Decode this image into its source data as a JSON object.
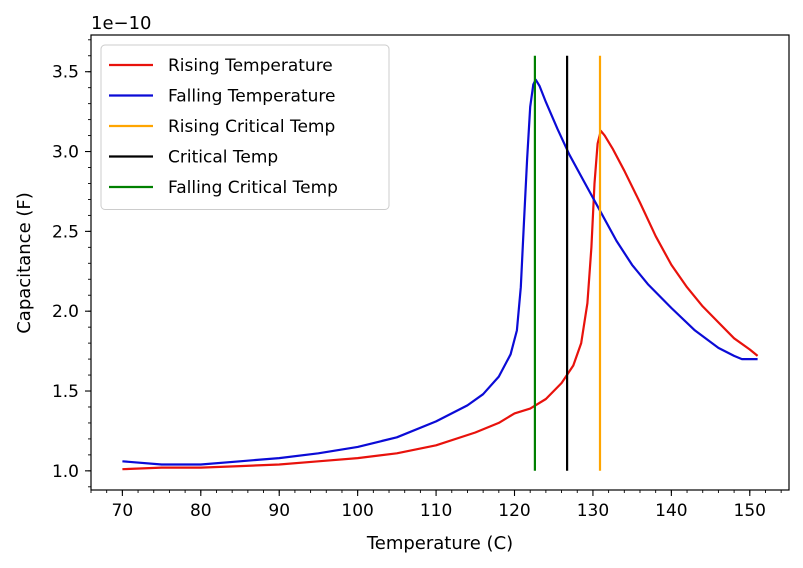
{
  "chart_data": {
    "type": "line",
    "xlabel": "Temperature (C)",
    "ylabel": "Capacitance (F)",
    "offset_label": "1e−10",
    "y_scale": 1e-10,
    "xlim": [
      66,
      155
    ],
    "ylim": [
      8.8e-11,
      3.73e-10
    ],
    "x_ticks": [
      70,
      80,
      90,
      100,
      110,
      120,
      130,
      140,
      150
    ],
    "x_tick_labels": [
      "70",
      "80",
      "90",
      "100",
      "110",
      "120",
      "130",
      "140",
      "150"
    ],
    "y_ticks": [
      1e-10,
      1.5e-10,
      2e-10,
      2.5e-10,
      3e-10,
      3.5e-10
    ],
    "y_tick_labels": [
      "1.0",
      "1.5",
      "2.0",
      "2.5",
      "3.0",
      "3.5"
    ],
    "grid": false,
    "legend_position": "top-left",
    "series": [
      {
        "name": "Rising Temperature",
        "kind": "curve",
        "color": "#e8120c",
        "x": [
          70,
          75,
          80,
          85,
          90,
          95,
          100,
          105,
          110,
          115,
          118,
          120,
          122,
          124,
          126,
          127.5,
          128.5,
          129.3,
          129.8,
          130.2,
          130.6,
          131,
          131.5,
          132.5,
          134,
          136,
          138,
          140,
          142,
          144,
          146,
          148,
          150,
          151
        ],
        "y": [
          1.01e-10,
          1.02e-10,
          1.02e-10,
          1.03e-10,
          1.04e-10,
          1.06e-10,
          1.08e-10,
          1.11e-10,
          1.16e-10,
          1.24e-10,
          1.3e-10,
          1.36e-10,
          1.39e-10,
          1.45e-10,
          1.55e-10,
          1.66e-10,
          1.8e-10,
          2.05e-10,
          2.4e-10,
          2.8e-10,
          3.05e-10,
          3.13e-10,
          3.1e-10,
          3.02e-10,
          2.88e-10,
          2.68e-10,
          2.47e-10,
          2.29e-10,
          2.15e-10,
          2.03e-10,
          1.93e-10,
          1.83e-10,
          1.76e-10,
          1.72e-10
        ]
      },
      {
        "name": "Falling Temperature",
        "kind": "curve",
        "color": "#0b0bd6",
        "x": [
          70,
          75,
          80,
          85,
          90,
          95,
          100,
          105,
          110,
          114,
          116,
          118,
          119.5,
          120.3,
          120.8,
          121.2,
          121.6,
          122,
          122.4,
          122.7,
          123.2,
          124,
          125.5,
          127,
          129,
          131,
          133,
          135,
          137,
          140,
          143,
          146,
          148,
          149,
          150,
          151
        ],
        "y": [
          1.06e-10,
          1.04e-10,
          1.04e-10,
          1.06e-10,
          1.08e-10,
          1.11e-10,
          1.15e-10,
          1.21e-10,
          1.31e-10,
          1.41e-10,
          1.48e-10,
          1.59e-10,
          1.73e-10,
          1.88e-10,
          2.15e-10,
          2.55e-10,
          2.95e-10,
          3.28e-10,
          3.42e-10,
          3.45e-10,
          3.41e-10,
          3.31e-10,
          3.14e-10,
          2.98e-10,
          2.8e-10,
          2.62e-10,
          2.44e-10,
          2.29e-10,
          2.17e-10,
          2.02e-10,
          1.88e-10,
          1.77e-10,
          1.72e-10,
          1.7e-10,
          1.7e-10,
          1.7e-10
        ]
      },
      {
        "name": "Rising Critical Temp",
        "kind": "vline",
        "color": "#ffa500",
        "x": [
          130.9,
          130.9
        ],
        "y": [
          1e-10,
          3.6e-10
        ]
      },
      {
        "name": "Critical Temp",
        "kind": "vline",
        "color": "#000000",
        "x": [
          126.7,
          126.7
        ],
        "y": [
          1e-10,
          3.6e-10
        ]
      },
      {
        "name": "Falling Critical Temp",
        "kind": "vline",
        "color": "#008000",
        "x": [
          122.6,
          122.6
        ],
        "y": [
          1e-10,
          3.6e-10
        ]
      }
    ]
  }
}
